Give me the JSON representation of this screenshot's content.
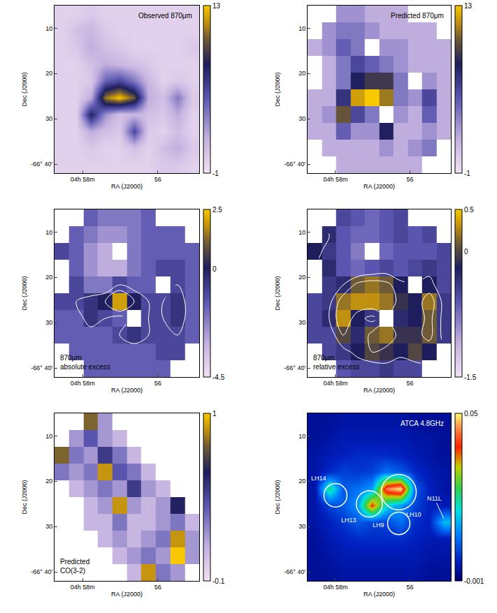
{
  "chart_data": [
    {
      "type": "heatmap",
      "color": "navy-gold",
      "annotation": [
        "Observed 870μm"
      ],
      "xlabel": "RA (J2000)",
      "ylabel": "Dec (J2000)",
      "x": [
        58.56,
        58.17,
        57.79,
        57.4,
        57.02,
        56.63,
        56.25,
        55.86,
        55.48,
        55.09
      ],
      "y": [
        6.85,
        10.55,
        14.25,
        17.95,
        21.65,
        25.35,
        29.05,
        32.75,
        36.45,
        40.15
      ],
      "xlim": [
        58.75,
        54.9
      ],
      "ylim": [
        42,
        5
      ],
      "xticks": [
        {
          "value": 58,
          "label": "04h 58m"
        },
        56
      ],
      "yticks": [
        10,
        20,
        30,
        {
          "value": 40,
          "label": "-66° 40'"
        }
      ],
      "colorbar": {
        "range": [
          -1,
          13
        ],
        "ticks": [
          -1,
          13
        ]
      },
      "z": [
        [
          0,
          0,
          0.5,
          0,
          0,
          0,
          0,
          0,
          0,
          0
        ],
        [
          0,
          1,
          1.5,
          0.5,
          0,
          0,
          0,
          0,
          0,
          0
        ],
        [
          0,
          0.5,
          2,
          1,
          0.5,
          0,
          0,
          0,
          0,
          0.5
        ],
        [
          0,
          0,
          1,
          2,
          1.5,
          1,
          0.5,
          0,
          0,
          0
        ],
        [
          0,
          0,
          0.5,
          5,
          6,
          4,
          1.5,
          0,
          0.5,
          0
        ],
        [
          0,
          0,
          2,
          11,
          13,
          10,
          2,
          1,
          4,
          0.5
        ],
        [
          0,
          0,
          8,
          3,
          1,
          1.5,
          1,
          0.5,
          2,
          0
        ],
        [
          0,
          0,
          2,
          1,
          0.5,
          6,
          0.5,
          0,
          1,
          0
        ],
        [
          0,
          0,
          0.5,
          0,
          0,
          1,
          0,
          1,
          2,
          0.5
        ],
        [
          0,
          0,
          0,
          0,
          0,
          0,
          0,
          0.5,
          0.5,
          0
        ]
      ]
    },
    {
      "type": "heatmap",
      "color": "navy-gold",
      "annotation": [
        "Predicted 870μm"
      ],
      "xlabel": "RA (J2000)",
      "ylabel": "Dec (J2000)",
      "x": [
        58.56,
        58.17,
        57.79,
        57.4,
        57.02,
        56.63,
        56.25,
        55.86,
        55.48,
        55.09
      ],
      "y": [
        6.85,
        10.55,
        14.25,
        17.95,
        21.65,
        25.35,
        29.05,
        32.75,
        36.45,
        40.15
      ],
      "xlim": [
        58.75,
        54.9
      ],
      "ylim": [
        42,
        5
      ],
      "xticks": [
        {
          "value": 58,
          "label": "04h 58m"
        },
        56
      ],
      "yticks": [
        10,
        20,
        30,
        {
          "value": 40,
          "label": "-66° 40'"
        }
      ],
      "colorbar": {
        "range": [
          -1,
          13
        ],
        "ticks": [
          -1,
          13
        ]
      },
      "z": [
        [
          null,
          null,
          3,
          3,
          2,
          2,
          2,
          null,
          null,
          null
        ],
        [
          null,
          3,
          4,
          4,
          3,
          2,
          2,
          2,
          2,
          null
        ],
        [
          2,
          3,
          5,
          4,
          null,
          3,
          3,
          2,
          2,
          2
        ],
        [
          null,
          2,
          4,
          6,
          5,
          4,
          3,
          2,
          2,
          2
        ],
        [
          null,
          2,
          4,
          8,
          9,
          9,
          4,
          null,
          3,
          2
        ],
        [
          2,
          2,
          7,
          12,
          13,
          11,
          4,
          3,
          6,
          2
        ],
        [
          2,
          3,
          10,
          6,
          4,
          null,
          3,
          2,
          5,
          2
        ],
        [
          2,
          2,
          5,
          3,
          3,
          8,
          2,
          2,
          3,
          2
        ],
        [
          null,
          2,
          2,
          2,
          2,
          3,
          2,
          3,
          4,
          null
        ],
        [
          null,
          null,
          2,
          2,
          2,
          2,
          2,
          2,
          null,
          null
        ]
      ]
    },
    {
      "type": "heatmap",
      "color": "navy-gold",
      "annotation": [
        "870μm",
        "absolute excess"
      ],
      "xlabel": "RA (J2000)",
      "ylabel": "Dec (J2000)",
      "x": [
        58.56,
        58.17,
        57.79,
        57.4,
        57.02,
        56.63,
        56.25,
        55.86,
        55.48,
        55.09
      ],
      "y": [
        6.85,
        10.55,
        14.25,
        17.95,
        21.65,
        25.35,
        29.05,
        32.75,
        36.45,
        40.15
      ],
      "xlim": [
        58.75,
        54.9
      ],
      "ylim": [
        42,
        5
      ],
      "xticks": [
        {
          "value": 58,
          "label": "04h 58m"
        },
        56
      ],
      "yticks": [
        10,
        20,
        30,
        {
          "value": 40,
          "label": "-66° 40'"
        }
      ],
      "colorbar": {
        "range": [
          -4.5,
          2.5
        ],
        "ticks": [
          -4.5,
          0,
          2.5
        ]
      },
      "contour_levels": [
        -1,
        0
      ],
      "z": [
        [
          null,
          null,
          -1.5,
          -2,
          -2,
          -2,
          -1.5,
          null,
          null,
          null
        ],
        [
          null,
          -1.5,
          -2,
          -2.5,
          -2.5,
          -2,
          -1.5,
          -1.5,
          -1.5,
          null
        ],
        [
          -1,
          -1.5,
          -2.5,
          -3,
          null,
          -2,
          -1.5,
          -1.5,
          -1.5,
          -1.5
        ],
        [
          null,
          -1.5,
          -2.5,
          -3,
          -3,
          -2,
          -1.5,
          -1,
          -1,
          -1.5
        ],
        [
          null,
          -1,
          -2,
          -2,
          -1,
          -1.5,
          -1.5,
          null,
          -1,
          -1.5
        ],
        [
          -1,
          -1,
          -0.5,
          0,
          2,
          0,
          -1,
          -1,
          -0.5,
          -1.5
        ],
        [
          -1.5,
          -1.5,
          -0.5,
          -1,
          -1.5,
          null,
          -1,
          -1,
          -0.5,
          -1.5
        ],
        [
          -1.5,
          -1.5,
          -1.5,
          -1.5,
          -1,
          -0.5,
          -1,
          -1,
          -1,
          -1.5
        ],
        [
          null,
          -1.5,
          -1.5,
          -1.5,
          -1.5,
          -1.5,
          -1.5,
          -1,
          -1,
          null
        ],
        [
          null,
          null,
          -1.5,
          -1.5,
          -1.5,
          -1.5,
          -1.5,
          -1.5,
          null,
          null
        ]
      ]
    },
    {
      "type": "heatmap",
      "color": "navy-gold",
      "annotation": [
        "870μm",
        "relative excess"
      ],
      "xlabel": "RA (J2000)",
      "ylabel": "Dec (J2000)",
      "x": [
        58.56,
        58.17,
        57.79,
        57.4,
        57.02,
        56.63,
        56.25,
        55.86,
        55.48,
        55.09
      ],
      "y": [
        6.85,
        10.55,
        14.25,
        17.95,
        21.65,
        25.35,
        29.05,
        32.75,
        36.45,
        40.15
      ],
      "xlim": [
        58.75,
        54.9
      ],
      "ylim": [
        42,
        5
      ],
      "xticks": [
        {
          "value": 58,
          "label": "04h 58m"
        },
        56
      ],
      "yticks": [
        10,
        20,
        30,
        {
          "value": 40,
          "label": "-66° 40'"
        }
      ],
      "colorbar": {
        "range": [
          -1.5,
          0.5
        ],
        "ticks": [
          -1.5,
          0,
          0.5
        ]
      },
      "contour_levels": [
        -0.3,
        0
      ],
      "z": [
        [
          null,
          null,
          -0.5,
          -0.6,
          -0.7,
          -0.6,
          -0.5,
          null,
          null,
          null
        ],
        [
          null,
          -0.3,
          -0.6,
          -0.7,
          -0.7,
          -0.6,
          -0.5,
          -0.6,
          -0.5,
          null
        ],
        [
          -0.2,
          -0.4,
          -0.6,
          -0.8,
          null,
          -0.7,
          -0.6,
          -0.6,
          -0.6,
          -0.5
        ],
        [
          null,
          -0.3,
          -0.6,
          -0.7,
          -0.6,
          -0.5,
          -0.6,
          -0.5,
          -0.4,
          -0.5
        ],
        [
          null,
          -0.4,
          -0.3,
          0.1,
          0.2,
          0.1,
          -0.2,
          null,
          -0.2,
          -0.5
        ],
        [
          -0.5,
          -0.4,
          0.2,
          0.3,
          0.3,
          0.2,
          -0.1,
          -0.2,
          0.2,
          -0.4
        ],
        [
          -0.5,
          -0.3,
          0.3,
          -0.2,
          -0.4,
          null,
          -0.3,
          -0.2,
          0.1,
          -0.4
        ],
        [
          -0.5,
          -0.5,
          0,
          -0.3,
          0.1,
          0.2,
          -0.1,
          -0.1,
          0.1,
          -0.4
        ],
        [
          null,
          -0.5,
          -0.4,
          -0.2,
          0,
          -0.1,
          -0.2,
          0,
          -0.2,
          null
        ],
        [
          null,
          null,
          -0.6,
          -0.5,
          -0.5,
          -0.4,
          -0.5,
          -0.5,
          null,
          null
        ]
      ]
    },
    {
      "type": "heatmap",
      "color": "navy-gold",
      "annotation": [
        "Predicted",
        "CO(3-2)"
      ],
      "xlabel": "RA (J2000)",
      "ylabel": "Dec (J2000)",
      "x": [
        58.56,
        58.17,
        57.79,
        57.4,
        57.02,
        56.63,
        56.25,
        55.86,
        55.48,
        55.09
      ],
      "y": [
        6.85,
        10.55,
        14.25,
        17.95,
        21.65,
        25.35,
        29.05,
        32.75,
        36.45,
        40.15
      ],
      "xlim": [
        58.75,
        54.9
      ],
      "ylim": [
        42,
        5
      ],
      "xticks": [
        {
          "value": 58,
          "label": "04h 58m"
        },
        56
      ],
      "yticks": [
        10,
        20,
        30,
        {
          "value": 40,
          "label": "-66° 40'"
        }
      ],
      "colorbar": {
        "range": [
          -0.1,
          1
        ],
        "ticks": [
          -0.1,
          1
        ]
      },
      "z": [
        [
          null,
          null,
          0.8,
          0.2,
          null,
          null,
          null,
          null,
          null,
          null
        ],
        [
          null,
          0.2,
          0.4,
          0.2,
          0.1,
          null,
          null,
          null,
          null,
          null
        ],
        [
          0.8,
          0.3,
          0.2,
          0.5,
          0.3,
          0.1,
          null,
          null,
          null,
          null
        ],
        [
          0.3,
          0.2,
          0.3,
          0.9,
          0.4,
          0.3,
          0.1,
          null,
          null,
          null
        ],
        [
          null,
          0.1,
          0.2,
          0.3,
          0.2,
          0.5,
          0.2,
          0.1,
          null,
          null
        ],
        [
          null,
          null,
          0.1,
          0.2,
          0.9,
          0.2,
          0.1,
          0.2,
          0.6,
          null
        ],
        [
          null,
          null,
          0.1,
          0.1,
          0.3,
          0.1,
          0.1,
          0.2,
          0.3,
          0.1
        ],
        [
          null,
          null,
          null,
          0.1,
          0.2,
          0.1,
          0.2,
          0.3,
          0.9,
          0.2
        ],
        [
          null,
          null,
          null,
          null,
          0.1,
          0.2,
          0.3,
          0.2,
          1,
          0.2
        ],
        [
          null,
          null,
          null,
          null,
          null,
          0.1,
          0.9,
          0.3,
          0.2,
          null
        ]
      ]
    },
    {
      "type": "heatmap",
      "color": "jet",
      "annotation": [
        "ATCA 4.8GHz"
      ],
      "xlabel": "RA (J2000)",
      "ylabel": "Dec (J2000)",
      "x": [
        58.56,
        58.17,
        57.79,
        57.4,
        57.02,
        56.63,
        56.25,
        55.86,
        55.48,
        55.09
      ],
      "y": [
        6.85,
        10.55,
        14.25,
        17.95,
        21.65,
        25.35,
        29.05,
        32.75,
        36.45,
        40.15
      ],
      "xlim": [
        58.75,
        54.9
      ],
      "ylim": [
        42,
        5
      ],
      "xticks": [
        {
          "value": 58,
          "label": "04h 58m"
        },
        56
      ],
      "yticks": [
        10,
        20,
        30,
        {
          "value": 40,
          "label": "-66° 40'"
        }
      ],
      "colorbar": {
        "range": [
          -0.001,
          0.05
        ],
        "ticks": [
          -0.001,
          0.05
        ]
      },
      "regions": [
        {
          "label": "LH14",
          "ra": 58.0,
          "dec": 23.1,
          "ra_radius": 0.31,
          "dec_radius": 2.6,
          "label_ra": 58.45,
          "label_dec": 19.4
        },
        {
          "label": "LH10",
          "ra": 56.3,
          "dec": 22.4,
          "ra_radius": 0.47,
          "dec_radius": 3.9,
          "label_ra": 55.9,
          "label_dec": 27.4
        },
        {
          "label": "LH13",
          "ra": 57.09,
          "dec": 25.0,
          "ra_radius": 0.35,
          "dec_radius": 2.9,
          "label_ra": 57.65,
          "label_dec": 28.6
        },
        {
          "label": "LH9",
          "ra": 56.3,
          "dec": 29.3,
          "ra_radius": 0.3,
          "dec_radius": 2.5,
          "label_ra": 56.85,
          "label_dec": 29.6
        }
      ],
      "pointers": [
        {
          "label": "N11L",
          "ra": 55.07,
          "dec": 28.6,
          "label_ra": 55.34,
          "label_dec": 23.8
        }
      ],
      "z": [
        [
          0.002,
          0.002,
          0.003,
          0.003,
          0.003,
          0.003,
          0.003,
          0.002,
          0.002,
          0.002
        ],
        [
          0.002,
          0.003,
          0.004,
          0.004,
          0.004,
          0.004,
          0.004,
          0.003,
          0.003,
          0.002
        ],
        [
          0.003,
          0.004,
          0.005,
          0.006,
          0.006,
          0.006,
          0.005,
          0.004,
          0.003,
          0.002
        ],
        [
          0.003,
          0.006,
          0.008,
          0.007,
          0.008,
          0.012,
          0.01,
          0.006,
          0.004,
          0.003
        ],
        [
          0.003,
          0.025,
          0.01,
          0.012,
          0.015,
          0.045,
          0.05,
          0.01,
          0.005,
          0.003
        ],
        [
          0.003,
          0.008,
          0.01,
          0.015,
          0.04,
          0.02,
          0.015,
          0.008,
          0.005,
          0.004
        ],
        [
          0.003,
          0.005,
          0.007,
          0.01,
          0.008,
          0.008,
          0.012,
          0.006,
          0.005,
          0.018
        ],
        [
          0.002,
          0.004,
          0.005,
          0.006,
          0.006,
          0.006,
          0.006,
          0.005,
          0.004,
          0.004
        ],
        [
          0.002,
          0.003,
          0.004,
          0.004,
          0.004,
          0.004,
          0.004,
          0.004,
          0.003,
          0.003
        ],
        [
          0.002,
          0.002,
          0.003,
          0.003,
          0.003,
          0.003,
          0.003,
          0.003,
          0.002,
          0.002
        ]
      ]
    }
  ]
}
